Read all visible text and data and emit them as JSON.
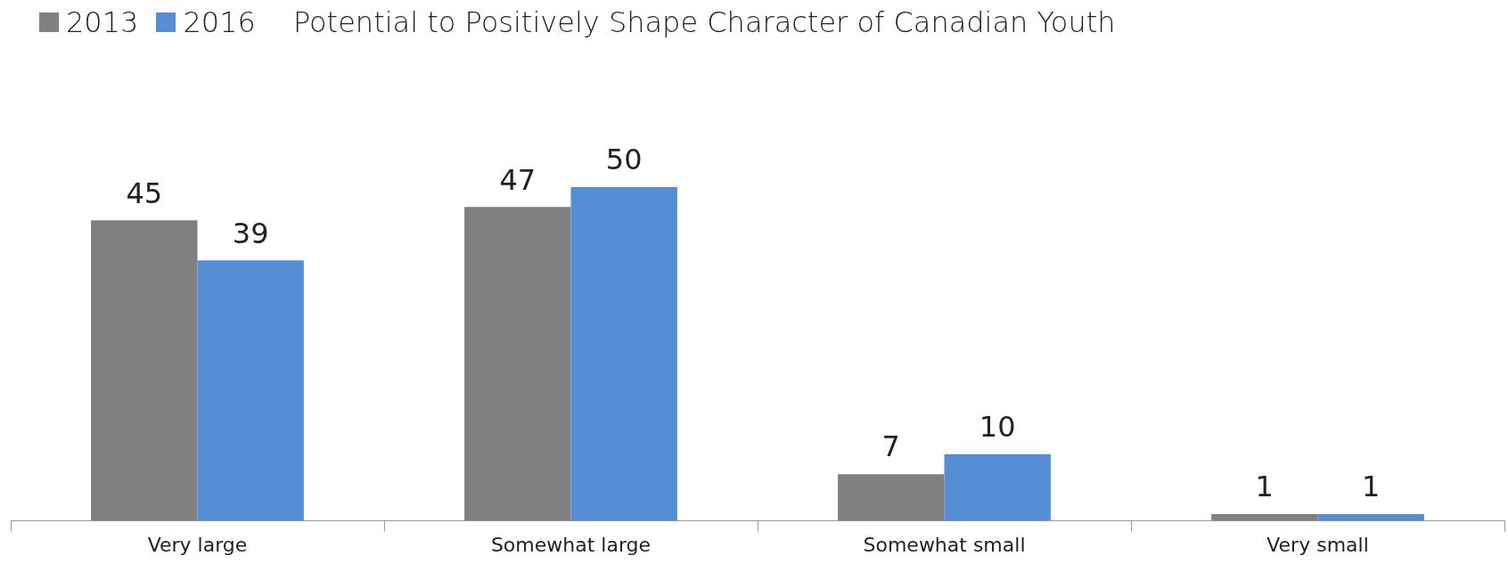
{
  "chart_data": {
    "type": "bar",
    "title": "Potential to Positively Shape Character of Canadian Youth",
    "categories": [
      "Very large",
      "Somewhat large",
      "Somewhat small",
      "Very small"
    ],
    "series": [
      {
        "name": "2013",
        "color": "#808080",
        "values": [
          45,
          47,
          7,
          1
        ]
      },
      {
        "name": "2016",
        "color": "#558ed5",
        "values": [
          39,
          50,
          10,
          1
        ]
      }
    ],
    "data_labels": true,
    "legend": "top left"
  }
}
